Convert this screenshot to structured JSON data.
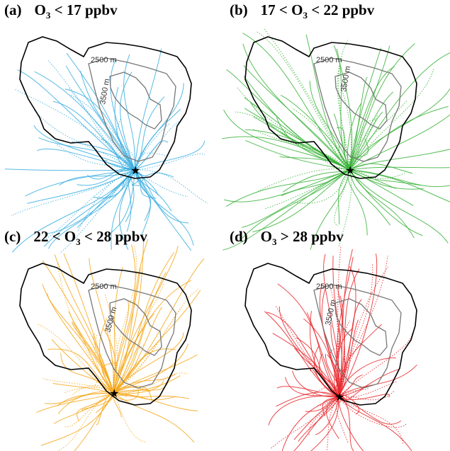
{
  "panels": [
    {
      "letter": "(a)",
      "title_pre": "O",
      "title_sub": "3",
      "title_post": " < 17 ppbv",
      "color": "#3aaee0",
      "contours": [
        "2500 m",
        "3500 m"
      ]
    },
    {
      "letter": "(b)",
      "title_pre": "17 < O",
      "title_sub": "3",
      "title_post": " < 22 ppbv",
      "color": "#3bb33b",
      "contours": [
        "2500 m",
        "3500 m"
      ]
    },
    {
      "letter": "(c)",
      "title_pre": "22 < O",
      "title_sub": "3",
      "title_post": " < 28 ppbv",
      "color": "#f5a81c",
      "contours": [
        "2500 m",
        "3500 m"
      ]
    },
    {
      "letter": "(d)",
      "title_pre": "O",
      "title_sub": "3",
      "title_post": " > 28 ppbv",
      "color": "#e8262a",
      "contours": [
        "2500 m",
        "3500 m"
      ]
    }
  ],
  "colors": {
    "coast": "#000000",
    "contour": "#777777"
  }
}
